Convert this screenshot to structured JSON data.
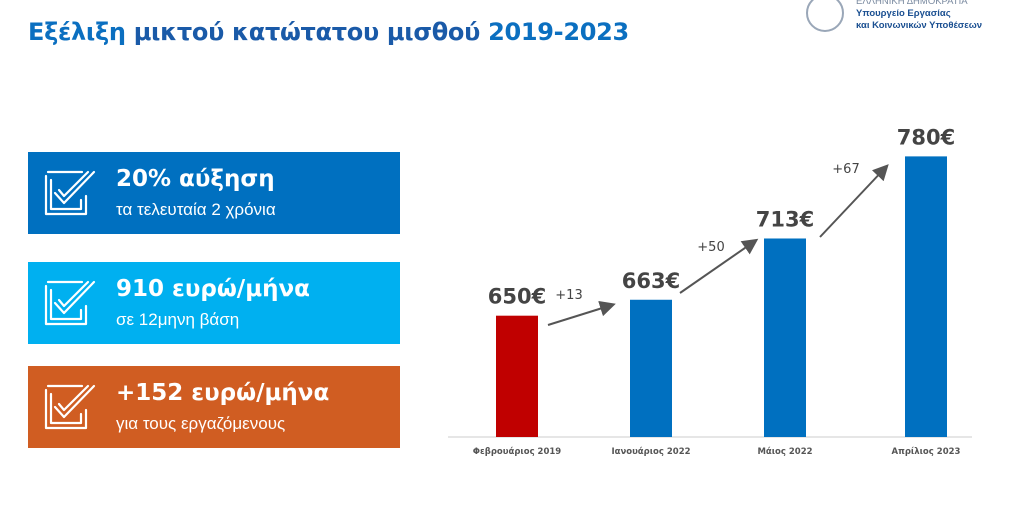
{
  "title": {
    "part1": "Εξέλιξη",
    "part2": " μικτού κατώτατου μισθού ",
    "part3": "2019-2023"
  },
  "logo": {
    "line1": "ΕΛΛΗΝΙΚΗ ΔΗΜΟΚΡΑΤΙΑ",
    "line2": "Υπουργείο Εργασίας",
    "line3": "και Κοινωνικών Υποθέσεων"
  },
  "cards": [
    {
      "headline": "20% αύξηση",
      "sub": "τα τελευταία 2 χρόνια",
      "color": "#0070c0",
      "icon": "checkbox-check-icon"
    },
    {
      "headline": "910 ευρώ/μήνα",
      "sub": "σε 12μηνη βάση",
      "color": "#00b0f0",
      "icon": "checkbox-check-icon"
    },
    {
      "headline": "+152 ευρώ/μήνα",
      "sub": "για τους εργαζόμενους",
      "color": "#d05d22",
      "icon": "checkbox-check-icon"
    }
  ],
  "chart_data": {
    "type": "bar",
    "categories": [
      "Φεβρουάριος 2019",
      "Ιανουάριος 2022",
      "Μάιος 2022",
      "Απρίλιος 2023"
    ],
    "values": [
      650,
      663,
      713,
      780
    ],
    "value_labels": [
      "650€",
      "663€",
      "713€",
      "780€"
    ],
    "colors": [
      "#c00000",
      "#0070c0",
      "#0070c0",
      "#0070c0"
    ],
    "increments": [
      "+13",
      "+50",
      "+67"
    ],
    "ylim": [
      551,
      800
    ]
  }
}
